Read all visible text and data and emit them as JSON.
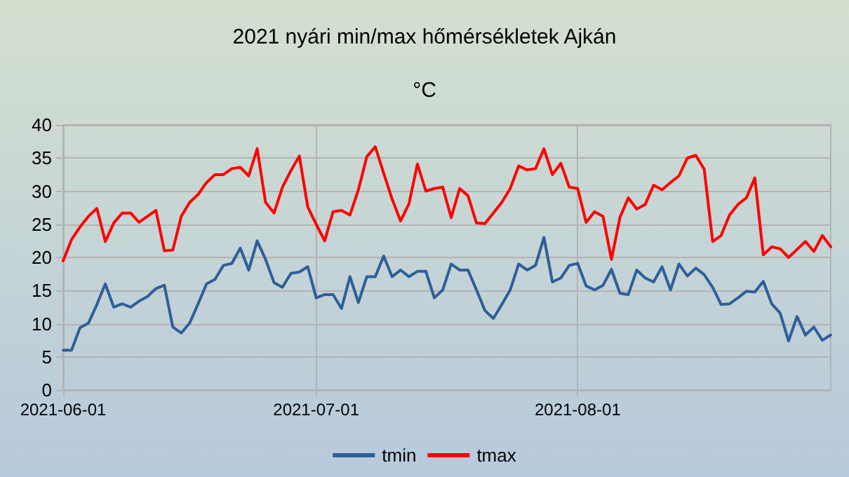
{
  "chart_data": {
    "type": "line",
    "title": "2021 nyári min/max hőmérsékletek Ajkán",
    "subtitle": "°C",
    "x": [
      "2021-06-01",
      "2021-06-02",
      "2021-06-03",
      "2021-06-04",
      "2021-06-05",
      "2021-06-06",
      "2021-06-07",
      "2021-06-08",
      "2021-06-09",
      "2021-06-10",
      "2021-06-11",
      "2021-06-12",
      "2021-06-13",
      "2021-06-14",
      "2021-06-15",
      "2021-06-16",
      "2021-06-17",
      "2021-06-18",
      "2021-06-19",
      "2021-06-20",
      "2021-06-21",
      "2021-06-22",
      "2021-06-23",
      "2021-06-24",
      "2021-06-25",
      "2021-06-26",
      "2021-06-27",
      "2021-06-28",
      "2021-06-29",
      "2021-06-30",
      "2021-07-01",
      "2021-07-02",
      "2021-07-03",
      "2021-07-04",
      "2021-07-05",
      "2021-07-06",
      "2021-07-07",
      "2021-07-08",
      "2021-07-09",
      "2021-07-10",
      "2021-07-11",
      "2021-07-12",
      "2021-07-13",
      "2021-07-14",
      "2021-07-15",
      "2021-07-16",
      "2021-07-17",
      "2021-07-18",
      "2021-07-19",
      "2021-07-20",
      "2021-07-21",
      "2021-07-22",
      "2021-07-23",
      "2021-07-24",
      "2021-07-25",
      "2021-07-26",
      "2021-07-27",
      "2021-07-28",
      "2021-07-29",
      "2021-07-30",
      "2021-07-31",
      "2021-08-01",
      "2021-08-02",
      "2021-08-03",
      "2021-08-04",
      "2021-08-05",
      "2021-08-06",
      "2021-08-07",
      "2021-08-08",
      "2021-08-09",
      "2021-08-10",
      "2021-08-11",
      "2021-08-12",
      "2021-08-13",
      "2021-08-14",
      "2021-08-15",
      "2021-08-16",
      "2021-08-17",
      "2021-08-18",
      "2021-08-19",
      "2021-08-20",
      "2021-08-21",
      "2021-08-22",
      "2021-08-23",
      "2021-08-24",
      "2021-08-25",
      "2021-08-26",
      "2021-08-27",
      "2021-08-28",
      "2021-08-29",
      "2021-08-30",
      "2021-08-31"
    ],
    "series": [
      {
        "name": "tmin",
        "color": "#2e5f98",
        "values": [
          6.0,
          6.0,
          9.4,
          10.1,
          12.9,
          16.0,
          12.5,
          13.0,
          12.5,
          13.4,
          14.1,
          15.3,
          15.8,
          9.5,
          8.6,
          10.1,
          13.0,
          16.0,
          16.7,
          18.8,
          19.1,
          21.4,
          18.1,
          22.5,
          19.7,
          16.2,
          15.5,
          17.6,
          17.8,
          18.6,
          13.9,
          14.4,
          14.4,
          12.3,
          17.1,
          13.2,
          17.1,
          17.1,
          20.2,
          17.1,
          18.1,
          17.1,
          17.9,
          17.9,
          13.9,
          15.1,
          19.0,
          18.1,
          18.1,
          15.1,
          12.0,
          10.8,
          12.9,
          15.1,
          19.0,
          18.1,
          18.8,
          23.0,
          16.3,
          16.9,
          18.8,
          19.1,
          15.7,
          15.1,
          15.8,
          18.2,
          14.6,
          14.4,
          18.1,
          16.9,
          16.3,
          18.6,
          15.1,
          19.0,
          17.2,
          18.4,
          17.4,
          15.5,
          12.9,
          13.0,
          13.9,
          14.9,
          14.8,
          16.4,
          13.0,
          11.6,
          7.4,
          11.1,
          8.3,
          9.5,
          7.5,
          8.3
        ]
      },
      {
        "name": "tmax",
        "color": "#ff0000",
        "values": [
          19.5,
          22.7,
          24.6,
          26.2,
          27.4,
          22.4,
          25.2,
          26.7,
          26.7,
          25.3,
          26.2,
          27.1,
          21.0,
          21.1,
          26.2,
          28.3,
          29.5,
          31.3,
          32.5,
          32.5,
          33.4,
          33.6,
          32.3,
          36.4,
          28.3,
          26.7,
          30.6,
          33.1,
          35.3,
          27.6,
          25.0,
          22.5,
          26.9,
          27.1,
          26.4,
          30.2,
          35.2,
          36.7,
          32.7,
          28.8,
          25.5,
          28.1,
          34.1,
          30.0,
          30.4,
          30.6,
          26.0,
          30.4,
          29.3,
          25.2,
          25.1,
          26.7,
          28.3,
          30.4,
          33.8,
          33.2,
          33.4,
          36.4,
          32.5,
          34.2,
          30.6,
          30.4,
          25.3,
          26.9,
          26.2,
          19.7,
          26.0,
          29.0,
          27.3,
          28.0,
          30.9,
          30.2,
          31.3,
          32.3,
          35.0,
          35.4,
          33.3,
          22.4,
          23.3,
          26.4,
          28.0,
          29.0,
          32.0,
          20.4,
          21.6,
          21.3,
          20.0,
          21.2,
          22.4,
          20.9,
          23.3,
          21.6
        ]
      }
    ],
    "xlim": [
      "2021-06-01",
      "2021-08-31"
    ],
    "xticks": [
      "2021-06-01",
      "2021-07-01",
      "2021-08-01"
    ],
    "ylim": [
      0,
      40
    ],
    "yticks": [
      0,
      5,
      10,
      15,
      20,
      25,
      30,
      35,
      40
    ],
    "grid": true,
    "legend": "bottom",
    "marker": "none",
    "line_style": "solid"
  }
}
